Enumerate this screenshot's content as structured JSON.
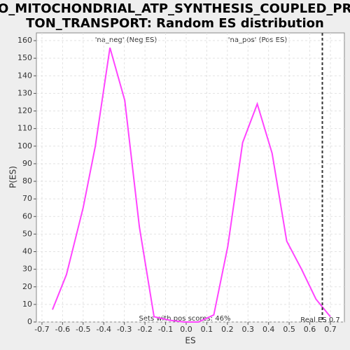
{
  "chart_data": {
    "type": "line",
    "title": [
      "GO_MITOCHONDRIAL_ATP_SYNTHESIS_COUPLED_PRO",
      "TON_TRANSPORT: Random ES distribution"
    ],
    "x_label": "ES",
    "y_label": "P(ES)",
    "neg_label": "'na_neg' (Neg ES)",
    "neg_color": "#3333cc",
    "pos_label": "'na_pos' (Pos ES)",
    "pos_color": "#dd3333",
    "pos_scores": "Sets with pos scores: 46%",
    "x": [
      -0.649,
      -0.581,
      -0.5,
      -0.441,
      -0.37,
      -0.298,
      -0.227,
      -0.156,
      -0.08,
      -0.01,
      0.06,
      0.134,
      0.202,
      0.274,
      0.345,
      0.417,
      0.488,
      0.56,
      0.63,
      0.7
    ],
    "values": [
      7,
      27,
      65,
      100,
      156,
      126,
      54,
      3,
      1,
      0,
      0,
      4,
      43,
      102,
      124,
      96,
      46,
      30,
      13,
      3
    ],
    "color": "#ff44ff",
    "real_es": {
      "value": 0.661,
      "label": "Real ES 0.7"
    },
    "xlim": [
      -0.727,
      0.768
    ],
    "xticks": [
      -0.7,
      -0.6,
      -0.5,
      -0.4,
      -0.3,
      -0.2,
      -0.1,
      {
        "value": 0,
        "label": "0.0"
      },
      0.1,
      0.2,
      0.3,
      0.4,
      0.5,
      0.6,
      0.7
    ],
    "ylim": [
      0,
      164.4
    ],
    "yticks": [
      0,
      10,
      20,
      30,
      40,
      50,
      60,
      70,
      80,
      90,
      100,
      110,
      120,
      130,
      140,
      150,
      160
    ],
    "grid": true
  }
}
